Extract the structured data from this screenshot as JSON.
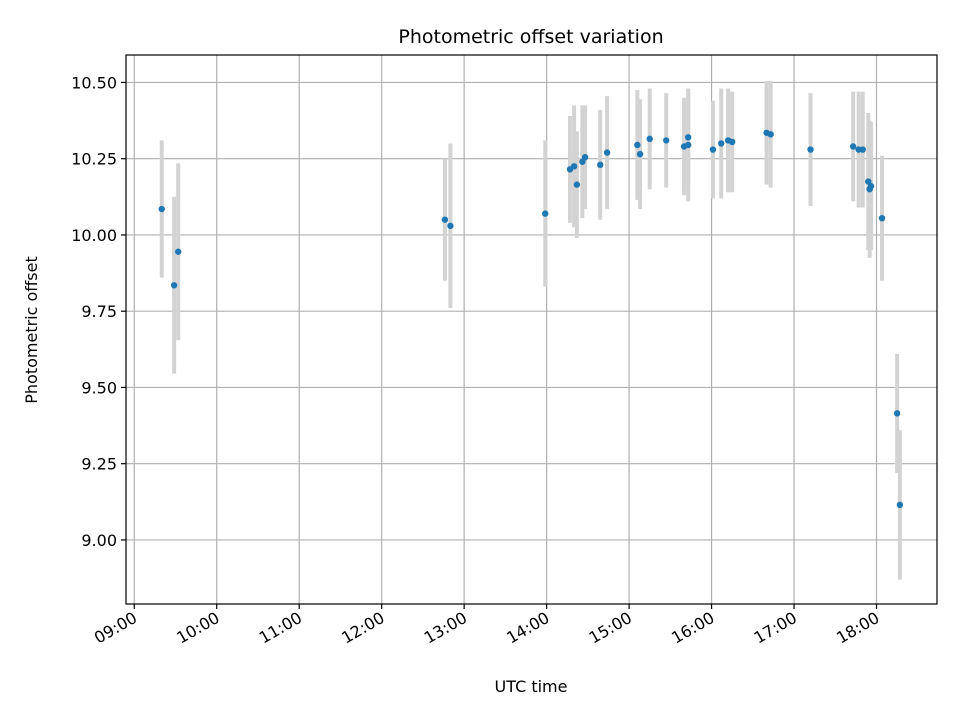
{
  "chart_data": {
    "type": "scatter",
    "title": "Photometric offset variation",
    "xlabel": "UTC time",
    "ylabel": "Photometric offset",
    "x_ticks": [
      "09:00",
      "10:00",
      "11:00",
      "12:00",
      "13:00",
      "14:00",
      "15:00",
      "16:00",
      "17:00",
      "18:00"
    ],
    "y_ticks": [
      "9.00",
      "9.25",
      "9.50",
      "9.75",
      "10.00",
      "10.25",
      "10.50"
    ],
    "xlim": [
      "08:54",
      "18:44"
    ],
    "ylim": [
      8.79,
      10.59
    ],
    "grid": true,
    "colors": {
      "point": "#1f77b4",
      "errorbar": "#d3d3d3",
      "grid": "#b0b0b0"
    },
    "series": [
      {
        "points": [
          {
            "t": "09:20",
            "y": 10.085,
            "err": 0.225
          },
          {
            "t": "09:29",
            "y": 9.835,
            "err": 0.29
          },
          {
            "t": "09:32",
            "y": 9.945,
            "err": 0.29
          },
          {
            "t": "12:46",
            "y": 10.05,
            "err": 0.2
          },
          {
            "t": "12:50",
            "y": 10.03,
            "err": 0.27
          },
          {
            "t": "13:59",
            "y": 10.07,
            "err": 0.24
          },
          {
            "t": "14:17",
            "y": 10.215,
            "err": 0.175
          },
          {
            "t": "14:20",
            "y": 10.225,
            "err": 0.2
          },
          {
            "t": "14:22",
            "y": 10.165,
            "err": 0.175
          },
          {
            "t": "14:26",
            "y": 10.24,
            "err": 0.185
          },
          {
            "t": "14:28",
            "y": 10.255,
            "err": 0.17
          },
          {
            "t": "14:39",
            "y": 10.23,
            "err": 0.18
          },
          {
            "t": "14:44",
            "y": 10.27,
            "err": 0.185
          },
          {
            "t": "15:06",
            "y": 10.295,
            "err": 0.18
          },
          {
            "t": "15:08",
            "y": 10.265,
            "err": 0.18
          },
          {
            "t": "15:15",
            "y": 10.315,
            "err": 0.165
          },
          {
            "t": "15:27",
            "y": 10.31,
            "err": 0.155
          },
          {
            "t": "15:40",
            "y": 10.29,
            "err": 0.16
          },
          {
            "t": "15:43",
            "y": 10.295,
            "err": 0.185
          },
          {
            "t": "15:43",
            "y": 10.32,
            "err": 0.16
          },
          {
            "t": "16:01",
            "y": 10.28,
            "err": 0.16
          },
          {
            "t": "16:07",
            "y": 10.3,
            "err": 0.18
          },
          {
            "t": "16:12",
            "y": 10.31,
            "err": 0.17
          },
          {
            "t": "16:15",
            "y": 10.305,
            "err": 0.165
          },
          {
            "t": "16:40",
            "y": 10.335,
            "err": 0.17
          },
          {
            "t": "16:43",
            "y": 10.33,
            "err": 0.175
          },
          {
            "t": "17:12",
            "y": 10.28,
            "err": 0.185
          },
          {
            "t": "17:43",
            "y": 10.29,
            "err": 0.18
          },
          {
            "t": "17:47",
            "y": 10.28,
            "err": 0.19
          },
          {
            "t": "17:50",
            "y": 10.28,
            "err": 0.19
          },
          {
            "t": "17:54",
            "y": 10.175,
            "err": 0.225
          },
          {
            "t": "17:55",
            "y": 10.15,
            "err": 0.225
          },
          {
            "t": "17:56",
            "y": 10.16,
            "err": 0.21
          },
          {
            "t": "18:04",
            "y": 10.055,
            "err": 0.205
          },
          {
            "t": "18:15",
            "y": 9.415,
            "err": 0.195
          },
          {
            "t": "18:17",
            "y": 9.115,
            "err": 0.245
          }
        ]
      }
    ]
  }
}
